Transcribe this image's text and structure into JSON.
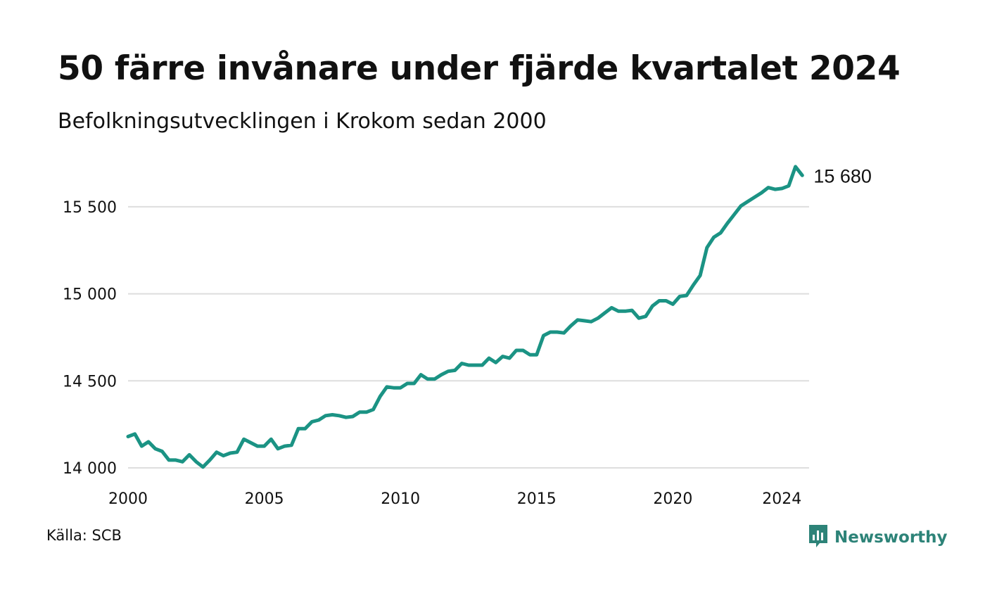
{
  "title": "50 färre invånare under fjärde kvartalet 2024",
  "subtitle": "Befolkningsutvecklingen i Krokom sedan 2000",
  "source": "Källa: SCB",
  "brand": "Newsworthy",
  "colors": {
    "line": "#1b9384",
    "grid": "#dedede",
    "brand": "#2d8378"
  },
  "chart_data": {
    "type": "line",
    "title": "50 färre invånare under fjärde kvartalet 2024",
    "subtitle": "Befolkningsutvecklingen i Krokom sedan 2000",
    "xlabel": "",
    "ylabel": "",
    "xlim": [
      2000,
      2025
    ],
    "ylim": [
      14000,
      15750
    ],
    "grid": true,
    "x_ticks": [
      2000,
      2005,
      2010,
      2015,
      2020,
      2024
    ],
    "x_tick_labels": [
      "2000",
      "2005",
      "2010",
      "2015",
      "2020",
      "2024"
    ],
    "y_ticks": [
      14000,
      14500,
      15000,
      15500
    ],
    "y_tick_labels": [
      "14 000",
      "14 500",
      "15 000",
      "15 500"
    ],
    "end_label": "15 680",
    "series": [
      {
        "x": [
          "2000 K1",
          "2000 K2",
          "2000 K3",
          "2000 K4",
          "2001 K1",
          "2001 K2",
          "2001 K3",
          "2001 K4",
          "2002 K1",
          "2002 K2",
          "2002 K3",
          "2002 K4",
          "2003 K1",
          "2003 K2",
          "2003 K3",
          "2003 K4",
          "2004 K1",
          "2004 K2",
          "2004 K3",
          "2004 K4",
          "2005 K1",
          "2005 K2",
          "2005 K3",
          "2005 K4",
          "2006 K1",
          "2006 K2",
          "2006 K3",
          "2006 K4",
          "2007 K1",
          "2007 K2",
          "2007 K3",
          "2007 K4",
          "2008 K1",
          "2008 K2",
          "2008 K3",
          "2008 K4",
          "2009 K1",
          "2009 K2",
          "2009 K3",
          "2009 K4",
          "2010 K1",
          "2010 K2",
          "2010 K3",
          "2010 K4",
          "2011 K1",
          "2011 K2",
          "2011 K3",
          "2011 K4",
          "2012 K1",
          "2012 K2",
          "2012 K3",
          "2012 K4",
          "2013 K1",
          "2013 K2",
          "2013 K3",
          "2013 K4",
          "2014 K1",
          "2014 K2",
          "2014 K3",
          "2014 K4",
          "2015 K1",
          "2015 K2",
          "2015 K3",
          "2015 K4",
          "2016 K1",
          "2016 K2",
          "2016 K3",
          "2016 K4",
          "2017 K1",
          "2017 K2",
          "2017 K3",
          "2017 K4",
          "2018 K1",
          "2018 K2",
          "2018 K3",
          "2018 K4",
          "2019 K1",
          "2019 K2",
          "2019 K3",
          "2019 K4",
          "2020 K1",
          "2020 K2",
          "2020 K3",
          "2020 K4",
          "2021 K1",
          "2021 K2",
          "2021 K3",
          "2021 K4",
          "2022 K1",
          "2022 K2",
          "2022 K3",
          "2022 K4",
          "2023 K1",
          "2023 K2",
          "2023 K3",
          "2023 K4",
          "2024 K1",
          "2024 K2",
          "2024 K3",
          "2024 K4"
        ],
        "values": [
          14180,
          14195,
          14125,
          14150,
          14110,
          14095,
          14045,
          14045,
          14035,
          14075,
          14035,
          14005,
          14045,
          14090,
          14070,
          14085,
          14090,
          14165,
          14145,
          14125,
          14125,
          14165,
          14110,
          14125,
          14130,
          14225,
          14225,
          14265,
          14275,
          14300,
          14305,
          14300,
          14290,
          14295,
          14320,
          14320,
          14335,
          14410,
          14465,
          14460,
          14460,
          14485,
          14485,
          14535,
          14510,
          14510,
          14535,
          14555,
          14560,
          14600,
          14590,
          14590,
          14590,
          14630,
          14605,
          14640,
          14630,
          14675,
          14675,
          14650,
          14650,
          14760,
          14780,
          14780,
          14775,
          14815,
          14850,
          14845,
          14840,
          14860,
          14890,
          14920,
          14900,
          14900,
          14905,
          14860,
          14870,
          14930,
          14960,
          14960,
          14940,
          14985,
          14990,
          15050,
          15105,
          15265,
          15325,
          15350,
          15405,
          15455,
          15505,
          15530,
          15555,
          15580,
          15610,
          15600,
          15605,
          15620,
          15730,
          15680
        ]
      }
    ]
  }
}
